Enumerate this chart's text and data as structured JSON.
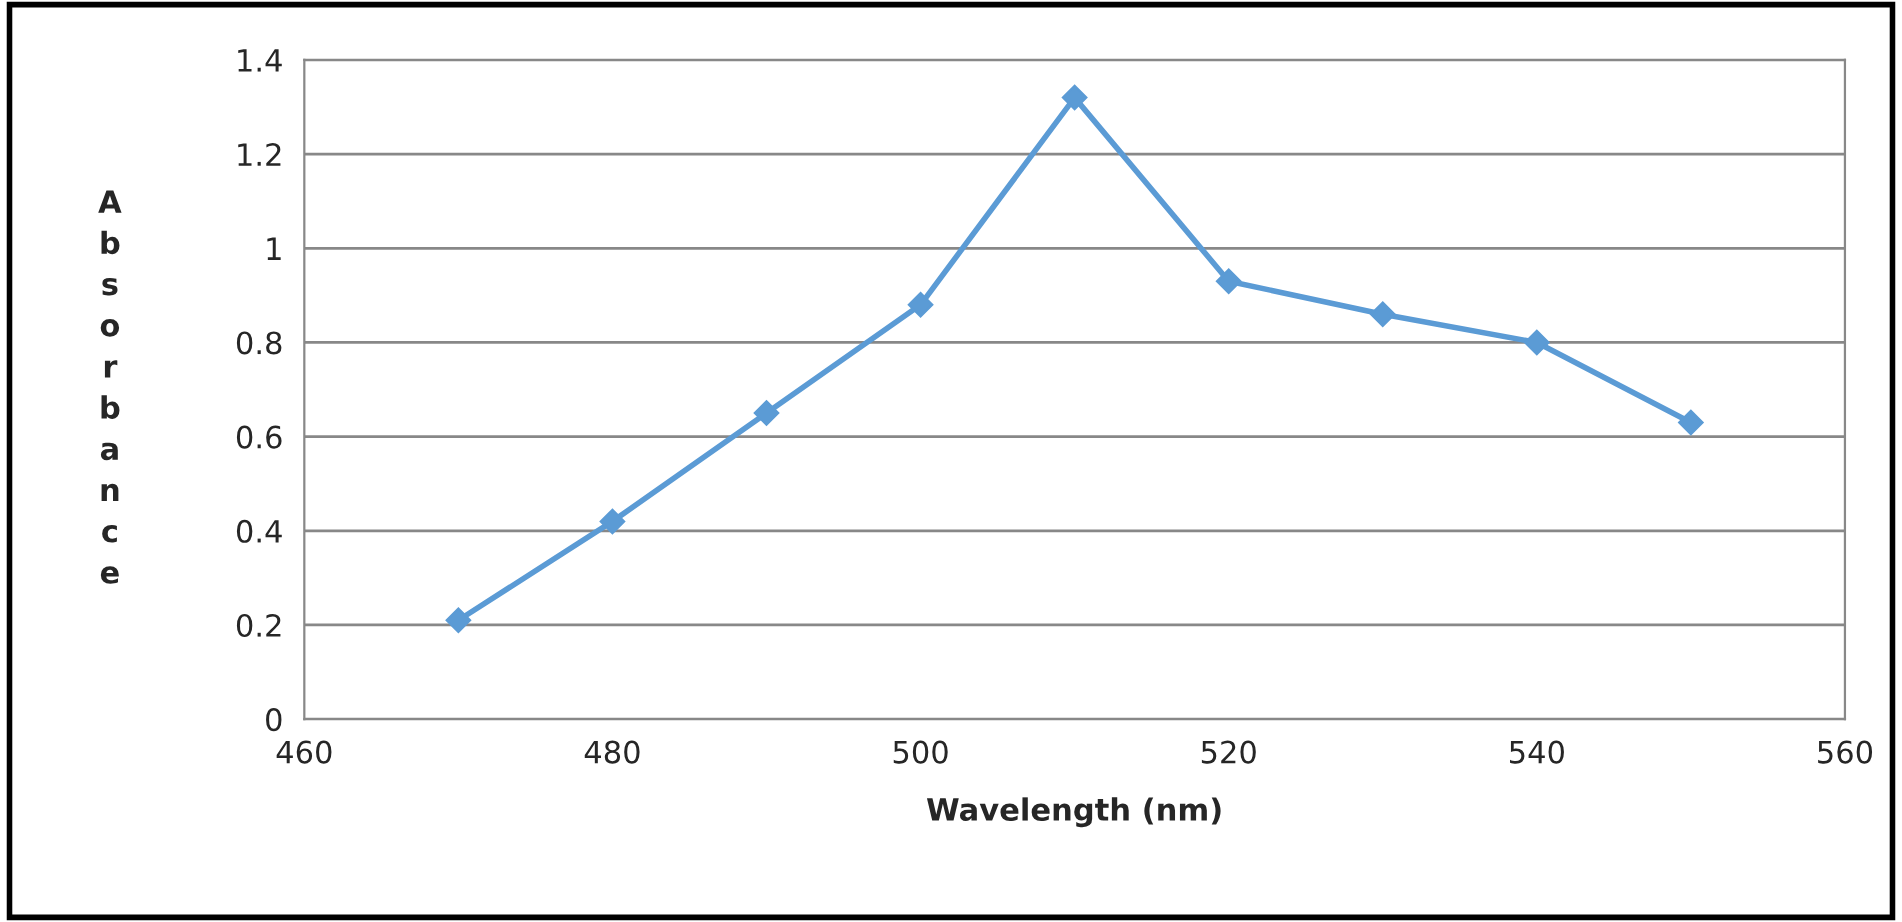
{
  "chart_data": {
    "type": "line",
    "xlabel": "Wavelength (nm)",
    "ylabel": "Absorbance",
    "x": [
      470,
      480,
      490,
      500,
      510,
      520,
      530,
      540,
      550
    ],
    "series": [
      {
        "color": "#5b9bd5",
        "values": [
          0.21,
          0.42,
          0.65,
          0.88,
          1.32,
          0.93,
          0.86,
          0.8,
          0.63
        ]
      }
    ],
    "xlim": [
      460,
      560
    ],
    "xticks": [
      460,
      480,
      500,
      520,
      540,
      560
    ],
    "ylim": [
      0,
      1.4
    ],
    "yticks": [
      0,
      0.2,
      0.4,
      0.6,
      0.8,
      1,
      1.2,
      1.4
    ],
    "grid": "y",
    "marker": "diamond",
    "line_style": "solid"
  }
}
